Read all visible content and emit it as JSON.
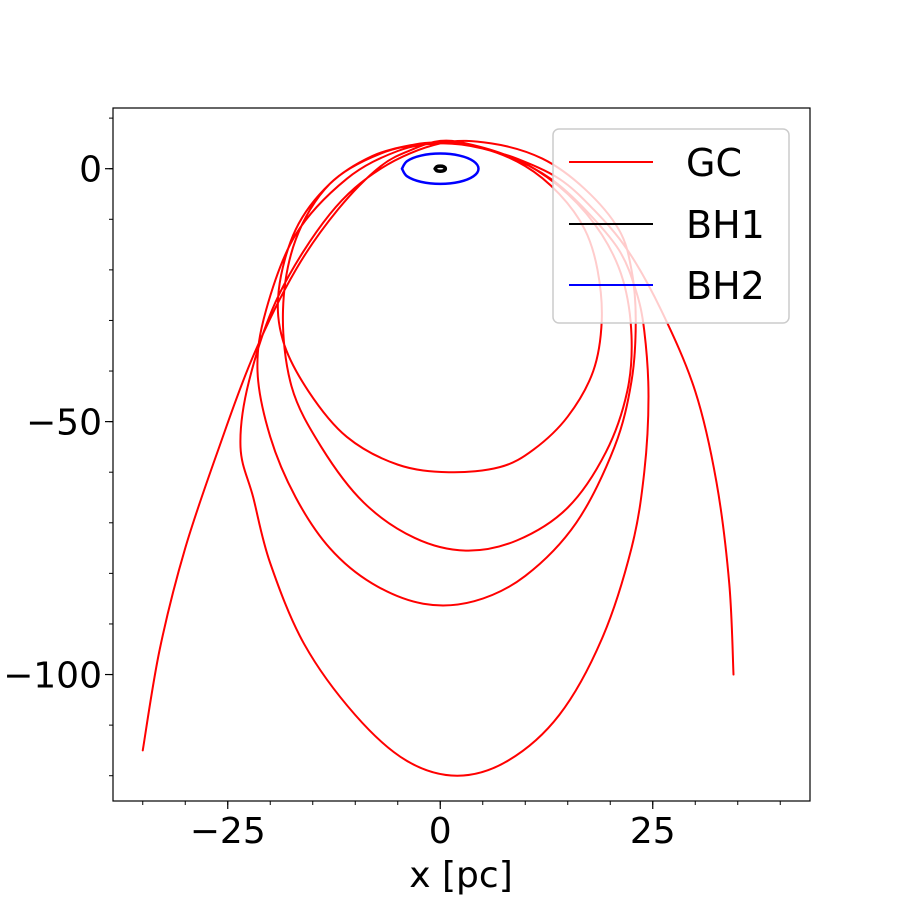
{
  "chart_data": {
    "type": "line",
    "title": "",
    "xlabel": "x [pc]",
    "ylabel": "",
    "xlim": [
      -38.5,
      43.5
    ],
    "ylim": [
      -125,
      12
    ],
    "x_ticks": [
      {
        "value": -25,
        "label": "−25"
      },
      {
        "value": 0,
        "label": "0"
      },
      {
        "value": 25,
        "label": "25"
      }
    ],
    "y_ticks": [
      {
        "value": 0,
        "label": "0"
      },
      {
        "value": -50,
        "label": "−50"
      },
      {
        "value": -100,
        "label": "−100"
      }
    ],
    "x_minor_step": 5,
    "y_minor_step": 10,
    "grid": false,
    "legend_position": "top-right",
    "series": [
      {
        "name": "GC",
        "color": "#ff0000",
        "x": [
          -35.0,
          -33.0,
          -30.0,
          -26.0,
          -22.0,
          -17.0,
          -12.0,
          -7.0,
          -3.0,
          0.0,
          3.0,
          8.0,
          13.0,
          17.0,
          21.0,
          23.0,
          24.0,
          24.5,
          24.0,
          22.5,
          19.0,
          14.0,
          8.0,
          2.0,
          -4.0,
          -10.0,
          -16.0,
          -20.0,
          -22.0,
          -23.5,
          -22.5,
          -19.0,
          -13.0,
          -7.0,
          0.0,
          6.0,
          12.0,
          17.0,
          21.0,
          22.5,
          23.0,
          22.5,
          20.5,
          16.0,
          10.0,
          4.0,
          -2.0,
          -8.0,
          -13.0,
          -17.0,
          -20.0,
          -21.5,
          -20.5,
          -17.0,
          -11.0,
          -5.0,
          0.0,
          5.0,
          10.0,
          15.0,
          19.0,
          21.5,
          22.5,
          22.0,
          19.5,
          15.0,
          9.0,
          3.0,
          -3.0,
          -9.0,
          -14.0,
          -17.5,
          -18.5,
          -17.0,
          -13.0,
          -7.0,
          -1.0,
          5.0,
          10.0,
          14.0,
          17.0,
          18.5,
          19.0,
          18.0,
          15.0,
          11.0,
          7.0,
          1.0,
          -5.0,
          -11.0,
          -15.5,
          -18.5,
          -19.0,
          -17.0,
          -13.0,
          -8.0,
          -3.0,
          0.0,
          2.0,
          5.0,
          9.0,
          14.0,
          18.0,
          22.0,
          26.0,
          30.0,
          32.5,
          34.0,
          34.5
        ],
        "y": [
          -115.0,
          -95.0,
          -75.0,
          -55.0,
          -37.0,
          -20.0,
          -8.0,
          0.5,
          4.0,
          5.5,
          5.0,
          2.5,
          -2.0,
          -8.0,
          -16.0,
          -24.0,
          -32.0,
          -45.0,
          -60.0,
          -75.0,
          -93.0,
          -108.0,
          -117.0,
          -120.0,
          -117.0,
          -108.0,
          -94.0,
          -78.0,
          -65.0,
          -55.0,
          -42.0,
          -25.0,
          -9.0,
          0.0,
          5.0,
          5.0,
          2.0,
          -4.0,
          -12.0,
          -20.0,
          -30.0,
          -42.0,
          -55.0,
          -70.0,
          -80.5,
          -85.5,
          -86.0,
          -82.0,
          -75.0,
          -65.0,
          -53.0,
          -40.0,
          -28.0,
          -13.0,
          -2.0,
          3.5,
          5.0,
          4.0,
          1.0,
          -5.0,
          -13.0,
          -22.0,
          -33.0,
          -44.0,
          -56.0,
          -67.0,
          -73.5,
          -75.5,
          -73.0,
          -66.0,
          -55.0,
          -43.0,
          -28.0,
          -14.0,
          -3.0,
          3.0,
          5.0,
          4.0,
          0.5,
          -5.0,
          -12.0,
          -20.0,
          -30.0,
          -40.0,
          -49.0,
          -55.5,
          -59.0,
          -60.0,
          -58.5,
          -53.0,
          -44.0,
          -34.0,
          -24.0,
          -12.0,
          -3.0,
          2.5,
          4.8,
          5.2,
          5.0,
          4.0,
          2.0,
          -2.0,
          -8.0,
          -16.0,
          -28.0,
          -44.0,
          -62.0,
          -82.0,
          -100.0
        ]
      },
      {
        "name": "BH1",
        "color": "#000000",
        "x": [
          -0.6,
          -0.4,
          0.0,
          0.4,
          0.6,
          0.4,
          0.0,
          -0.4,
          -0.6
        ],
        "y": [
          0.0,
          0.4,
          0.5,
          0.4,
          0.0,
          -0.4,
          -0.5,
          -0.4,
          0.0
        ]
      },
      {
        "name": "BH2",
        "color": "#0000ff",
        "x": [
          -4.5,
          -3.9,
          -2.25,
          0.0,
          2.25,
          3.9,
          4.5,
          3.9,
          2.25,
          0.0,
          -2.25,
          -3.9,
          -4.5
        ],
        "y": [
          0.0,
          1.5,
          2.6,
          3.0,
          2.6,
          1.5,
          0.0,
          -1.5,
          -2.6,
          -3.0,
          -2.6,
          -1.5,
          0.0
        ]
      }
    ]
  }
}
